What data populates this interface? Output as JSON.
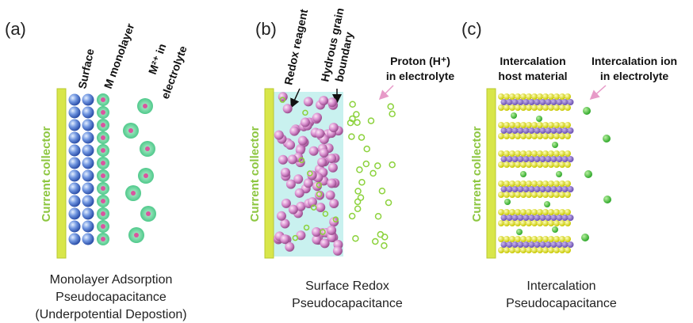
{
  "panels": [
    {
      "label": "(a)",
      "collector": "Current collector",
      "annotations": [
        "Surface",
        "M monolayer",
        "M²⁺ in",
        "electrolyte"
      ],
      "caption": [
        "Monolayer Adsorption",
        "Pseudocapacitance",
        "(Underpotential Depostion)"
      ]
    },
    {
      "label": "(b)",
      "collector": "Current collector",
      "annotations": [
        "Redox reagent",
        "Hydrous grain",
        "boundary",
        "Proton (H⁺)",
        "in electrolyte"
      ],
      "caption": [
        "Surface Redox",
        "Pseudocapacitance"
      ]
    },
    {
      "label": "(c)",
      "collector": "Current collector",
      "annotations": [
        "Intercalation",
        "host material",
        "Intercalation ion",
        "in electrolyte"
      ],
      "caption": [
        "Intercalation",
        "Pseudocapacitance"
      ]
    }
  ]
}
